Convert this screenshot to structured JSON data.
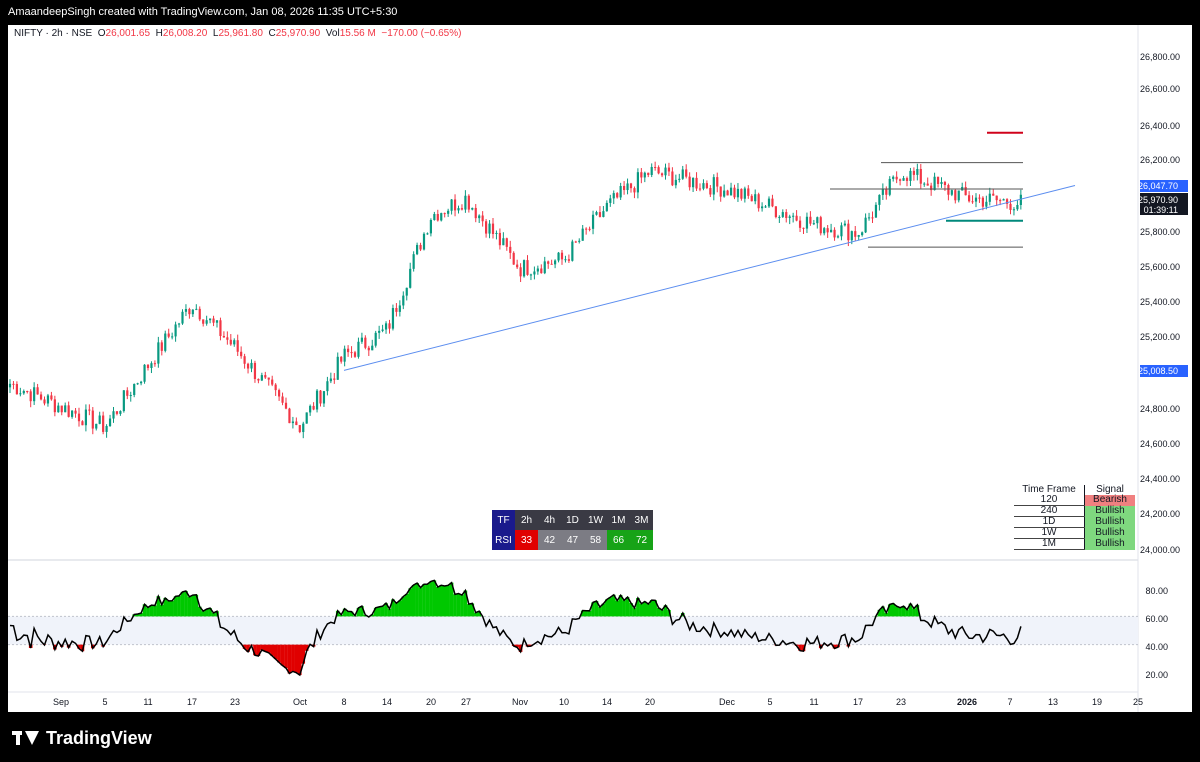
{
  "header": {
    "credit": "AmaandeepSingh created with TradingView.com, Jan 08, 2026 11:35 UTC+5:30"
  },
  "legend": {
    "symbol": "NIFTY · 2h · NSE",
    "o_label": "O",
    "o_value": "26,001.65",
    "h_label": "H",
    "h_value": "26,008.20",
    "l_label": "L",
    "l_value": "25,961.80",
    "c_label": "C",
    "c_value": "25,970.90",
    "vol_label": "Vol",
    "vol_value": "15.56 M",
    "change": "−170.00 (−0.65%)"
  },
  "price_axis": {
    "ticks": [
      "26,800.00",
      "26,600.00",
      "26,400.00",
      "26,200.00",
      "25,800.00",
      "25,600.00",
      "25,400.00",
      "25,200.00",
      "24,800.00",
      "24,600.00",
      "24,400.00",
      "24,200.00",
      "24,000.00"
    ],
    "label_trendline": "26,047.70",
    "label_last": "25,970.90",
    "label_countdown": "01:39:11",
    "label_level": "25,008.50"
  },
  "rsi_axis": {
    "ticks": [
      "80.00",
      "60.00",
      "40.00",
      "20.00"
    ]
  },
  "time_axis": {
    "labels": [
      "Sep",
      "5",
      "11",
      "17",
      "23",
      "Oct",
      "8",
      "14",
      "20",
      "27",
      "Nov",
      "10",
      "14",
      "20",
      "Dec",
      "5",
      "11",
      "17",
      "23",
      "2026",
      "7",
      "13",
      "19",
      "25"
    ]
  },
  "rsi_table": {
    "header_label": "TF",
    "row_label": "RSI",
    "timeframes": [
      "2h",
      "4h",
      "1D",
      "1W",
      "1M",
      "3M"
    ],
    "values": [
      "33",
      "42",
      "47",
      "58",
      "66",
      "72"
    ]
  },
  "signal_table": {
    "col_timeframe": "Time Frame",
    "col_signal": "Signal",
    "rows": [
      {
        "tf": "120",
        "signal": "Bearish"
      },
      {
        "tf": "240",
        "signal": "Bullish"
      },
      {
        "tf": "1D",
        "signal": "Bullish"
      },
      {
        "tf": "1W",
        "signal": "Bullish"
      },
      {
        "tf": "1M",
        "signal": "Bullish"
      }
    ]
  },
  "footer": {
    "brand": "TradingView"
  },
  "colors": {
    "up": "#089981",
    "down": "#f23645",
    "trendline": "#5b8def",
    "rsi_bull_fill": "#00c800",
    "rsi_bear_fill": "#e00000",
    "bearish_bg": "#f08080",
    "bullish_bg": "#7fd87f",
    "table_header": "#1a1a8c",
    "rsi_red": "#e00000",
    "rsi_gray": "#7c7c84",
    "rsi_green": "#17a317"
  },
  "chart_data": {
    "type": "candlestick",
    "symbol": "NIFTY",
    "interval": "2h",
    "ylim": [
      24000,
      26900
    ],
    "anchors": [
      [
        "Sep",
        24950
      ],
      [
        "5",
        24700
      ],
      [
        "11",
        25050
      ],
      [
        "17",
        25400
      ],
      [
        "23",
        25150
      ],
      [
        "Oct",
        24700
      ],
      [
        "8",
        25100
      ],
      [
        "14",
        25250
      ],
      [
        "20",
        25900
      ],
      [
        "27",
        26000
      ],
      [
        "Nov",
        25600
      ],
      [
        "10",
        25650
      ],
      [
        "14",
        25950
      ],
      [
        "20",
        26150
      ],
      [
        "Dec",
        26050
      ],
      [
        "5",
        25950
      ],
      [
        "11",
        25850
      ],
      [
        "17",
        25800
      ],
      [
        "23",
        26150
      ],
      [
        "2026",
        26000
      ],
      [
        "7",
        25971
      ]
    ],
    "levels": [
      26047.7,
      25970.9,
      25008.5
    ],
    "rsi": {
      "ylim": [
        10,
        95
      ],
      "upper": 60,
      "lower": 40,
      "last": 33
    }
  }
}
